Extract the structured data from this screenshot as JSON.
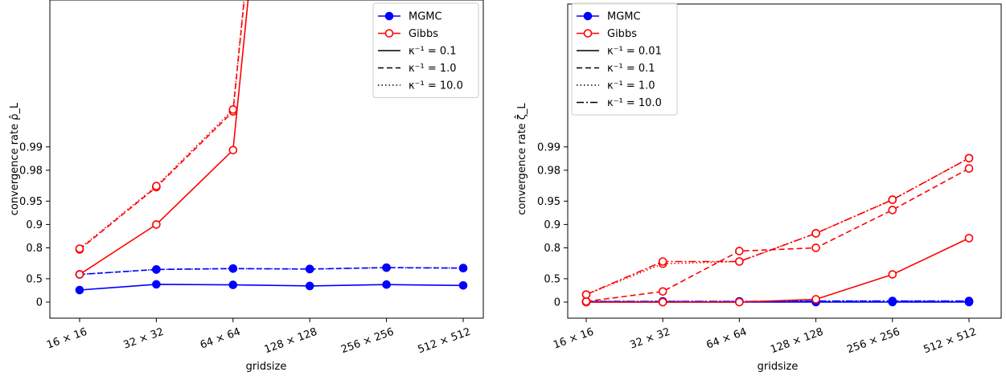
{
  "chart_data": [
    {
      "type": "line",
      "xlabel": "gridsize",
      "ylabel": "convergence rate ρ̂_L",
      "categories": [
        "16 × 16",
        "32 × 32",
        "64 × 64",
        "128 × 128",
        "256 × 256",
        "512 × 512"
      ],
      "yticks": [
        0,
        0.5,
        0.8,
        0.9,
        0.95,
        0.98,
        0.99
      ],
      "ylim": [
        0,
        0.992
      ],
      "legend_position": "top-right",
      "legend": [
        {
          "label": "MGMC",
          "kind": "marker",
          "color": "#0000ff",
          "marker": "filled-circle"
        },
        {
          "label": "Gibbs",
          "kind": "marker",
          "color": "#ff0000",
          "marker": "open-circle"
        },
        {
          "label": "κ⁻¹ = 0.1",
          "kind": "style",
          "dash": "solid"
        },
        {
          "label": "κ⁻¹ = 1.0",
          "kind": "style",
          "dash": "dashed"
        },
        {
          "label": "κ⁻¹ = 10.0",
          "kind": "style",
          "dash": "dotted"
        }
      ],
      "series": [
        {
          "method": "MGMC",
          "kappa_inv": 0.1,
          "color": "#0000ff",
          "marker": "filled",
          "dash": "solid",
          "values": [
            0.3,
            0.41,
            0.4,
            0.38,
            0.405,
            0.39
          ]
        },
        {
          "method": "MGMC",
          "kappa_inv": 1.0,
          "color": "#0000ff",
          "marker": "filled",
          "dash": "dashed",
          "values": [
            0.56,
            0.62,
            0.63,
            0.625,
            0.64,
            0.635
          ]
        },
        {
          "method": "MGMC",
          "kappa_inv": 10.0,
          "color": "#0000ff",
          "marker": "filled",
          "dash": "dotted",
          "values": [
            0.56,
            0.62,
            0.63,
            0.625,
            0.64,
            0.635
          ]
        },
        {
          "method": "Gibbs",
          "kappa_inv": 0.1,
          "color": "#ff0000",
          "marker": "open",
          "dash": "solid",
          "values": [
            0.56,
            0.9,
            0.989,
            null,
            null,
            null
          ]
        },
        {
          "method": "Gibbs",
          "kappa_inv": 1.0,
          "color": "#ff0000",
          "marker": "open",
          "dash": "dashed",
          "values": [
            0.79,
            0.967,
            0.9965,
            null,
            null,
            null
          ]
        },
        {
          "method": "Gibbs",
          "kappa_inv": 10.0,
          "color": "#ff0000",
          "marker": "open",
          "dash": "dotted",
          "values": [
            0.795,
            0.968,
            0.9967,
            null,
            null,
            null
          ]
        }
      ]
    },
    {
      "type": "line",
      "xlabel": "gridsize",
      "ylabel": "convergence rate ζ̂_L",
      "categories": [
        "16 × 16",
        "32 × 32",
        "64 × 64",
        "128 × 128",
        "256 × 256",
        "512 × 512"
      ],
      "yticks": [
        0,
        0.5,
        0.8,
        0.9,
        0.95,
        0.98,
        0.99
      ],
      "ylim": [
        0,
        0.992
      ],
      "legend_position": "top-left",
      "legend": [
        {
          "label": "MGMC",
          "kind": "marker",
          "color": "#0000ff",
          "marker": "filled-circle"
        },
        {
          "label": "Gibbs",
          "kind": "marker",
          "color": "#ff0000",
          "marker": "open-circle"
        },
        {
          "label": "κ⁻¹ = 0.01",
          "kind": "style",
          "dash": "solid"
        },
        {
          "label": "κ⁻¹ = 0.1",
          "kind": "style",
          "dash": "dashed"
        },
        {
          "label": "κ⁻¹ = 1.0",
          "kind": "style",
          "dash": "dotted"
        },
        {
          "label": "κ⁻¹ = 10.0",
          "kind": "style",
          "dash": "dashdot"
        }
      ],
      "series": [
        {
          "method": "MGMC",
          "kappa_inv": 0.01,
          "color": "#0000ff",
          "marker": "filled",
          "dash": "solid",
          "values": [
            0.0,
            0.0,
            0.0,
            0.0,
            0.0,
            0.0
          ]
        },
        {
          "method": "MGMC",
          "kappa_inv": 0.1,
          "color": "#0000ff",
          "marker": "filled",
          "dash": "dashed",
          "values": [
            0.01,
            0.01,
            0.01,
            0.01,
            0.01,
            0.01
          ]
        },
        {
          "method": "MGMC",
          "kappa_inv": 1.0,
          "color": "#0000ff",
          "marker": "filled",
          "dash": "dotted",
          "values": [
            0.02,
            0.02,
            0.02,
            0.03,
            0.03,
            0.03
          ]
        },
        {
          "method": "MGMC",
          "kappa_inv": 10.0,
          "color": "#0000ff",
          "marker": "filled",
          "dash": "dashdot",
          "values": [
            0.02,
            0.02,
            0.02,
            0.03,
            0.03,
            0.03
          ]
        },
        {
          "method": "Gibbs",
          "kappa_inv": 0.01,
          "color": "#ff0000",
          "marker": "open",
          "dash": "solid",
          "values": [
            0.0,
            0.0,
            0.0,
            0.08,
            0.56,
            0.85
          ]
        },
        {
          "method": "Gibbs",
          "kappa_inv": 0.1,
          "color": "#ff0000",
          "marker": "open",
          "dash": "dashed",
          "values": [
            0.02,
            0.27,
            0.78,
            0.8,
            0.935,
            0.981
          ]
        },
        {
          "method": "Gibbs",
          "kappa_inv": 1.0,
          "color": "#ff0000",
          "marker": "open",
          "dash": "dotted",
          "values": [
            0.2,
            0.68,
            0.7,
            0.87,
            0.952,
            0.986
          ]
        },
        {
          "method": "Gibbs",
          "kappa_inv": 10.0,
          "color": "#ff0000",
          "marker": "open",
          "dash": "dashdot",
          "values": [
            0.2,
            0.7,
            0.7,
            0.87,
            0.952,
            0.986
          ]
        }
      ]
    }
  ]
}
